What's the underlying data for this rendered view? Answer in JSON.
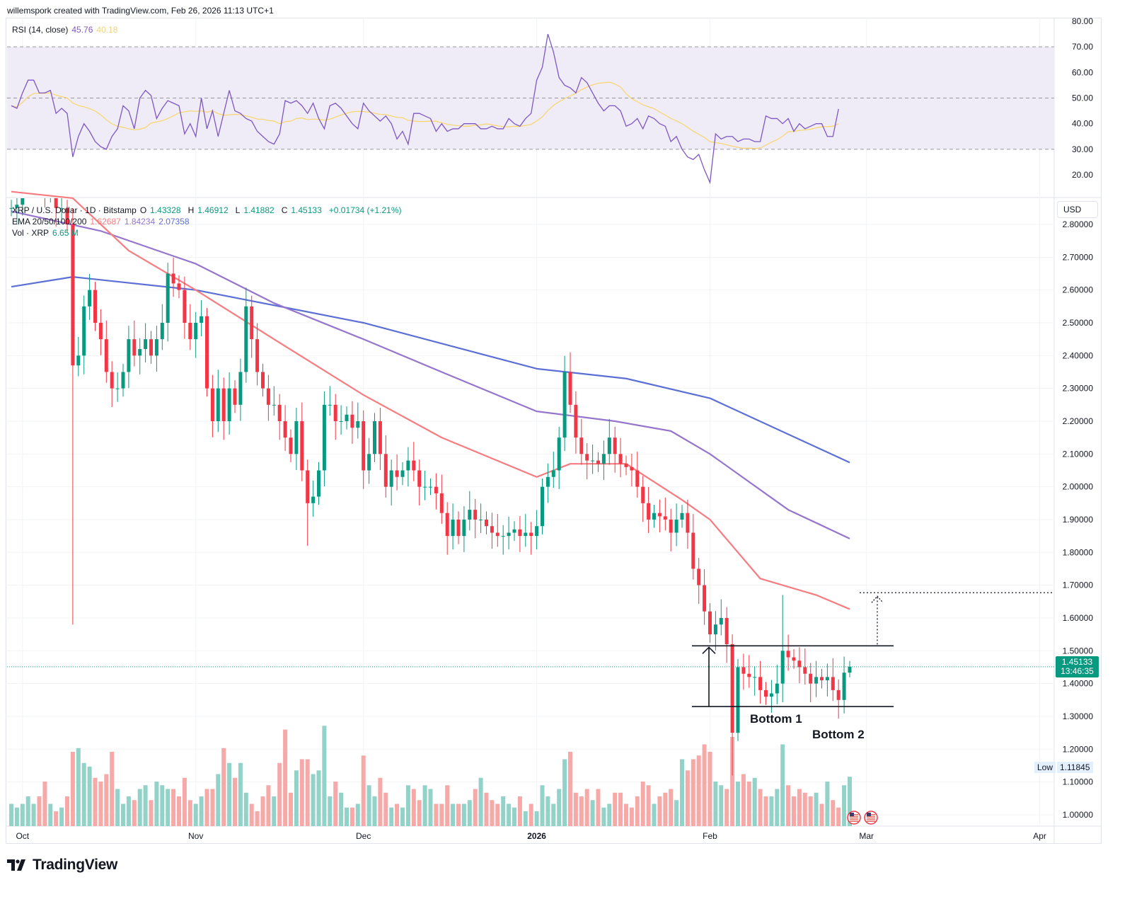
{
  "credit": "willemspork created with TradingView.com, Feb 26, 2026 11:13 UTC+1",
  "rsi_legend": {
    "label": "RSI (14, close)",
    "value": "45.76",
    "ma_value": "40.18"
  },
  "price_legend": {
    "symbol": "XRP / U.S. Dollar · 1D · Bitstamp",
    "o_label": "O",
    "o": "1.43328",
    "h_label": "H",
    "h": "1.46912",
    "l_label": "L",
    "l": "1.41882",
    "c_label": "C",
    "c": "1.45133",
    "change": "+0.01734 (+1.21%)"
  },
  "ema_legend": {
    "label": "EMA 20/50/100/200",
    "v1": "1.62687",
    "v2": "1.84234",
    "v3": "2.07358"
  },
  "vol_legend": {
    "label": "Vol · XRP",
    "value": "6.65 M"
  },
  "currency": "USD",
  "last_price": {
    "price": "1.45133",
    "countdown": "13:46:35"
  },
  "low_label": {
    "label": "Low",
    "value": "1.11845"
  },
  "annotations": {
    "bottom1": "Bottom 1",
    "bottom2": "Bottom 2"
  },
  "logo": "TradingView",
  "colors": {
    "up": "#089981",
    "down": "#f23645",
    "up_vol": "#92d2c8",
    "down_vol": "#f7a9a8",
    "rsi": "#7e57c2",
    "rsi_ma": "#f7d774",
    "ema20": "#f77c80",
    "ema100": "#9575cd",
    "ema200": "#5b6fd6",
    "rsi_band": "#efecf8"
  },
  "chart_data": {
    "type": "candlestick",
    "title": "XRP / U.S. Dollar · 1D · Bitstamp",
    "start_date": "2025-09-29",
    "price_axis": {
      "ticks": [
        "2.80000",
        "2.70000",
        "2.60000",
        "2.50000",
        "2.40000",
        "2.30000",
        "2.20000",
        "2.10000",
        "2.00000",
        "1.90000",
        "1.80000",
        "1.70000",
        "1.60000",
        "1.50000",
        "1.40000",
        "1.30000",
        "1.20000",
        "1.10000",
        "1.00000"
      ],
      "range": [
        1.0,
        2.8
      ]
    },
    "rsi_axis": {
      "ticks": [
        "80.00",
        "70.00",
        "60.00",
        "50.00",
        "40.00",
        "30.00",
        "20.00"
      ],
      "range": [
        20,
        80
      ],
      "band": [
        30,
        70
      ]
    },
    "time_axis": [
      {
        "label": "Oct",
        "day": 2
      },
      {
        "label": "Nov",
        "day": 33
      },
      {
        "label": "Dec",
        "day": 63
      },
      {
        "label": "2026",
        "day": 94,
        "bold": true
      },
      {
        "label": "Feb",
        "day": 125
      },
      {
        "label": "Mar",
        "day": 153
      },
      {
        "label": "Apr",
        "day": 184
      }
    ],
    "close": [
      2.85,
      2.86,
      2.95,
      3.0,
      3.0,
      2.95,
      2.9,
      2.95,
      2.85,
      2.85,
      2.8,
      2.37,
      2.4,
      2.55,
      2.6,
      2.5,
      2.45,
      2.35,
      2.3,
      2.3,
      2.35,
      2.45,
      2.4,
      2.42,
      2.45,
      2.4,
      2.45,
      2.5,
      2.65,
      2.62,
      2.6,
      2.5,
      2.45,
      2.5,
      2.52,
      2.3,
      2.2,
      2.3,
      2.2,
      2.3,
      2.25,
      2.35,
      2.55,
      2.45,
      2.35,
      2.3,
      2.25,
      2.25,
      2.2,
      2.15,
      2.1,
      2.2,
      2.05,
      1.95,
      1.97,
      2.05,
      2.25,
      2.25,
      2.2,
      2.2,
      2.22,
      2.18,
      2.2,
      2.05,
      2.1,
      2.2,
      2.1,
      2.0,
      2.05,
      2.03,
      2.05,
      2.08,
      2.05,
      2.0,
      2.0,
      2.0,
      1.98,
      1.92,
      1.85,
      1.9,
      1.85,
      1.9,
      1.93,
      1.9,
      1.9,
      1.88,
      1.86,
      1.85,
      1.85,
      1.86,
      1.87,
      1.85,
      1.86,
      1.85,
      1.88,
      2.0,
      2.03,
      2.05,
      2.15,
      2.35,
      2.25,
      2.15,
      2.1,
      2.08,
      2.08,
      2.07,
      2.1,
      2.15,
      2.1,
      2.07,
      2.06,
      2.05,
      2.0,
      1.95,
      1.9,
      1.92,
      1.91,
      1.9,
      1.86,
      1.9,
      1.92,
      1.86,
      1.75,
      1.7,
      1.62,
      1.55,
      1.58,
      1.6,
      1.52,
      1.25,
      1.45,
      1.43,
      1.42,
      1.42,
      1.38,
      1.36,
      1.37,
      1.4,
      1.5,
      1.48,
      1.47,
      1.45,
      1.43,
      1.4,
      1.42,
      1.41,
      1.42,
      1.38,
      1.35,
      1.43328,
      1.45133
    ],
    "wick_overrides": [
      {
        "day": 11,
        "low": 1.58,
        "high": 2.85
      },
      {
        "day": 129,
        "low": 1.12,
        "high": 1.55
      },
      {
        "day": 138,
        "high": 1.67
      },
      {
        "day": 100,
        "high": 2.41
      },
      {
        "day": 53,
        "low": 1.82
      },
      {
        "day": 150,
        "low": 1.41882,
        "high": 1.46912
      }
    ],
    "volume_m": [
      3,
      2.5,
      3,
      4,
      3,
      4,
      6,
      3,
      2,
      2.5,
      4,
      10,
      10.5,
      8.5,
      8,
      6.5,
      6,
      7,
      10,
      5,
      3,
      4,
      3.5,
      5,
      5.5,
      3.5,
      6,
      5.5,
      5,
      5,
      4,
      6.5,
      3.5,
      3,
      4,
      5,
      5,
      7,
      10.5,
      8.5,
      6.5,
      8.5,
      4.5,
      3,
      2,
      4,
      5.5,
      4,
      8.5,
      13,
      4.5,
      7.5,
      9,
      9,
      7,
      7.5,
      13.5,
      4,
      6,
      4.5,
      2.5,
      2.5,
      3,
      9.5,
      5.5,
      4,
      6.5,
      4.5,
      2.5,
      3,
      2.5,
      5.5,
      5,
      3.5,
      5.5,
      5,
      3,
      3,
      5.5,
      3,
      3,
      3,
      3.5,
      5,
      6.5,
      4.5,
      3.5,
      3,
      4,
      3,
      2.5,
      4,
      2,
      3,
      2,
      5.5,
      4,
      3,
      5,
      9,
      10,
      4.5,
      4,
      5,
      3.5,
      5,
      2.5,
      3,
      4.5,
      4.5,
      3,
      2.5,
      4,
      6,
      5.5,
      3,
      4,
      4.5,
      5,
      3.5,
      9,
      7.5,
      9,
      9.5,
      11,
      10,
      6,
      5.5,
      5,
      12,
      6,
      7,
      6,
      6.5,
      5,
      4,
      4,
      5,
      11,
      5.5,
      4,
      5,
      4.5,
      4,
      4.5,
      3,
      6,
      3.5,
      2.5,
      5.5,
      6.65
    ],
    "ema20": [
      [
        0,
        2.9
      ],
      [
        11,
        2.88
      ],
      [
        21,
        2.72
      ],
      [
        33,
        2.6
      ],
      [
        47,
        2.45
      ],
      [
        63,
        2.28
      ],
      [
        77,
        2.15
      ],
      [
        94,
        2.03
      ],
      [
        100,
        2.07
      ],
      [
        110,
        2.07
      ],
      [
        120,
        1.96
      ],
      [
        125,
        1.9
      ],
      [
        134,
        1.72
      ],
      [
        144,
        1.67
      ],
      [
        150,
        1.627
      ]
    ],
    "ema100": [
      [
        0,
        2.84
      ],
      [
        16,
        2.78
      ],
      [
        33,
        2.68
      ],
      [
        47,
        2.56
      ],
      [
        63,
        2.45
      ],
      [
        77,
        2.35
      ],
      [
        94,
        2.23
      ],
      [
        108,
        2.2
      ],
      [
        118,
        2.17
      ],
      [
        125,
        2.1
      ],
      [
        139,
        1.93
      ],
      [
        150,
        1.842
      ]
    ],
    "ema200": [
      [
        0,
        2.61
      ],
      [
        11,
        2.64
      ],
      [
        33,
        2.6
      ],
      [
        63,
        2.5
      ],
      [
        94,
        2.36
      ],
      [
        110,
        2.33
      ],
      [
        125,
        2.27
      ],
      [
        150,
        2.074
      ]
    ],
    "rsi": [
      47,
      46,
      52,
      57,
      57,
      52,
      52,
      53,
      44,
      46,
      44,
      27,
      35,
      40,
      37,
      33,
      31,
      30,
      35,
      38,
      47,
      45,
      38,
      50,
      53,
      51,
      42,
      46,
      49,
      48,
      47,
      36,
      40,
      35,
      50,
      38,
      45,
      35,
      44,
      53,
      45,
      44,
      42,
      41,
      37,
      35,
      33,
      32,
      36,
      49,
      48,
      49,
      47,
      44,
      48,
      42,
      38,
      47,
      48,
      46,
      43,
      40,
      38,
      48,
      45,
      43,
      41,
      43,
      40,
      34,
      37,
      32,
      44,
      44,
      43,
      42,
      37,
      40,
      37,
      38,
      38,
      40,
      40,
      40,
      38,
      38,
      39,
      38,
      38,
      42,
      40,
      39,
      42,
      44,
      57,
      62,
      75,
      68,
      58,
      55,
      54,
      52,
      58,
      56,
      52,
      48,
      45,
      47,
      47,
      45,
      39,
      40,
      42,
      38,
      43,
      42,
      40,
      39,
      33,
      35,
      30,
      27,
      26,
      28,
      22,
      17,
      36,
      34,
      35,
      35,
      33,
      34,
      34,
      33,
      33,
      43,
      42,
      42,
      40,
      42,
      37,
      40,
      38,
      39,
      40,
      40,
      35,
      35,
      45.76
    ],
    "rsi_ma_period": 14,
    "levels": {
      "resistance": 1.515,
      "support": 1.33,
      "target": 1.677
    }
  }
}
